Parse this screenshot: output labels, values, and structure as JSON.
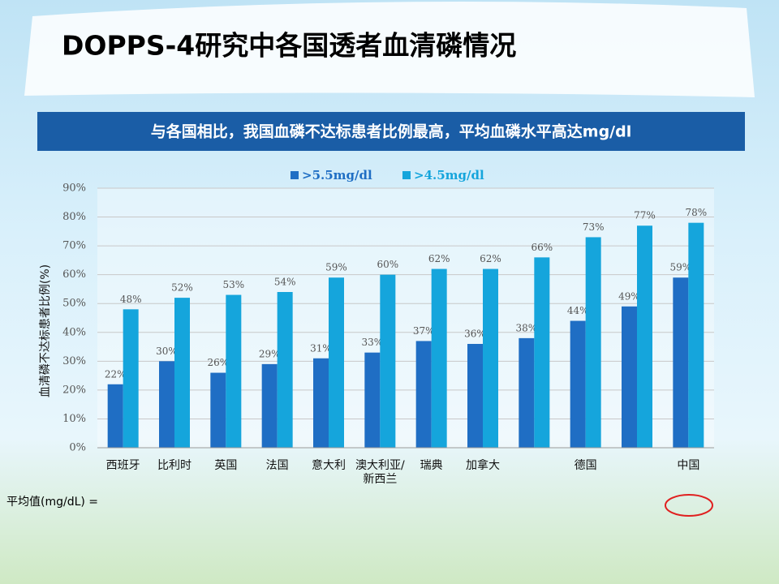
{
  "title": "DOPPS-4研究中各国透者血清磷情况",
  "banner": "与各国相比，我国血磷不达标患者比例最高，平均血磷水平高达mg/dl",
  "footer": "平均值(mg/dL) =",
  "chart_data": {
    "type": "bar",
    "y_label": "血清磷不达标患者比例(%)",
    "categories": [
      "西班牙",
      "比利时",
      "英国",
      "法国",
      "意大利",
      "澳大利亚/新西兰",
      "瑞典",
      "加拿大",
      null,
      "德国",
      null,
      "中国"
    ],
    "series": [
      {
        "name": ">5.5mg/dl",
        "color": "#1f6ec4",
        "values": [
          22,
          30,
          26,
          29,
          31,
          33,
          37,
          36,
          38,
          44,
          49,
          59
        ],
        "value_labels": [
          "22%",
          "30%",
          "26%",
          "29%",
          "31%",
          "33%",
          "37%",
          "36%",
          "38%",
          "44%",
          "49%",
          "59%"
        ]
      },
      {
        "name": ">4.5mg/dl",
        "color": "#15a5dc",
        "values": [
          48,
          52,
          53,
          54,
          59,
          60,
          62,
          62,
          66,
          73,
          77,
          78
        ],
        "value_labels": [
          "48%",
          "52%",
          "53%",
          "54%",
          "59%",
          "60%",
          "62%",
          "62%",
          "66%",
          "73%",
          "77%",
          "78%"
        ]
      }
    ],
    "ylim": [
      0,
      90
    ],
    "yticks": [
      {
        "value": 0,
        "label": "0%"
      },
      {
        "value": 10,
        "label": "10%"
      },
      {
        "value": 20,
        "label": "20%"
      },
      {
        "value": 30,
        "label": "30%"
      },
      {
        "value": 40,
        "label": "40%"
      },
      {
        "value": 50,
        "label": "50%"
      },
      {
        "value": 60,
        "label": "60%"
      },
      {
        "value": 70,
        "label": "70%"
      },
      {
        "value": 80,
        "label": "80%"
      },
      {
        "value": 90,
        "label": "90%"
      }
    ],
    "grid": true
  }
}
